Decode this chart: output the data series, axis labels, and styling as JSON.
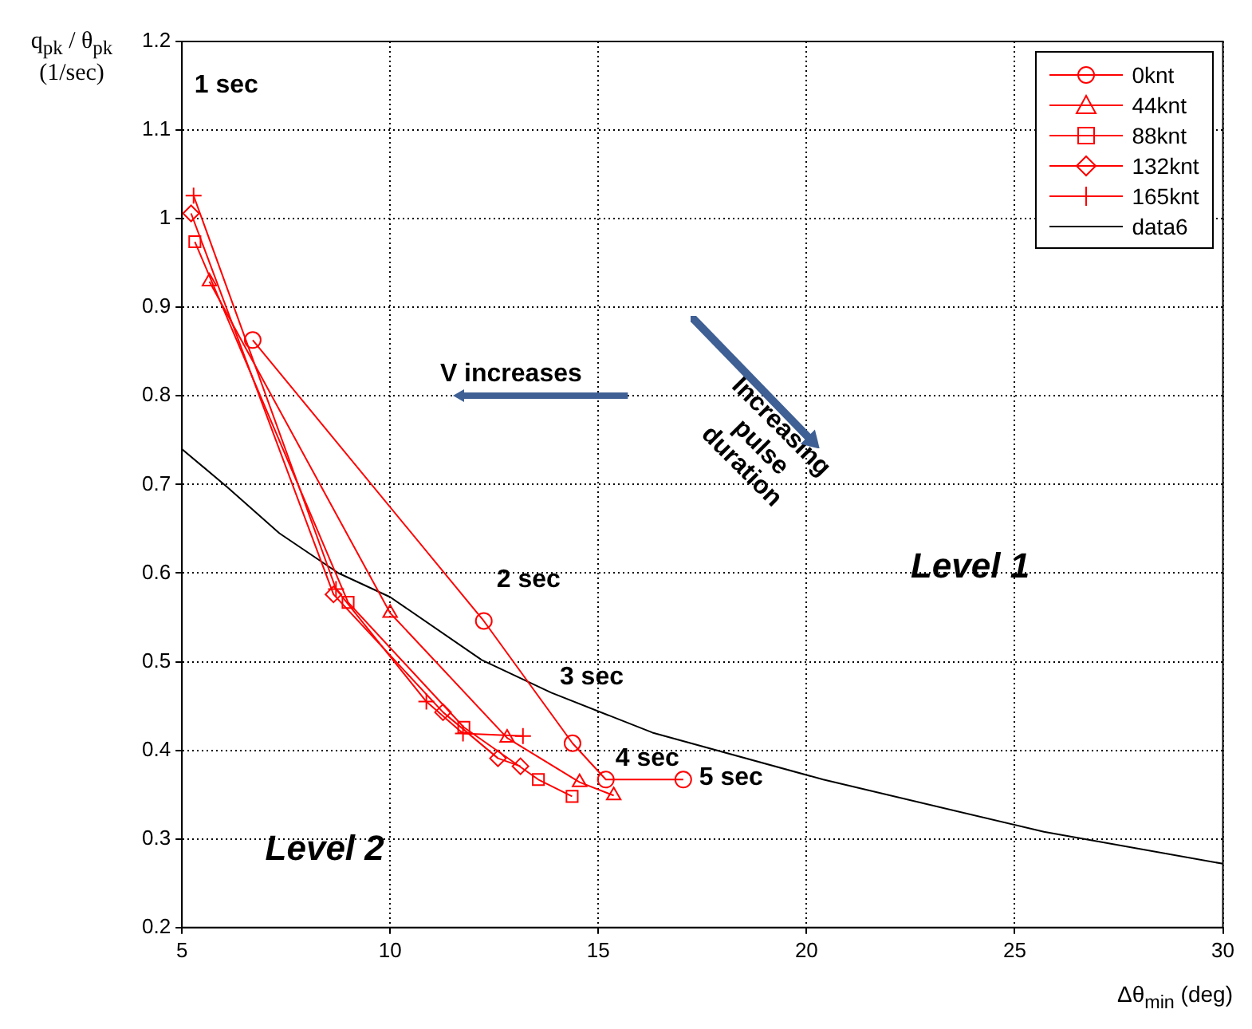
{
  "chart_data": {
    "type": "line",
    "ylabel": "q$_{pk}$ / θ$_{pk}$ (1/sec)",
    "xlabel": "Δθ$_{min}$ (deg)",
    "xlim": [
      5,
      30
    ],
    "xticks": [
      5,
      10,
      15,
      20,
      25,
      30
    ],
    "ylim": [
      0.2,
      1.2
    ],
    "yticks": [
      0.2,
      0.3,
      0.4,
      0.5,
      0.6,
      0.7,
      0.8,
      0.9,
      1,
      1.1,
      1.2
    ],
    "grid": true,
    "legend": "top right",
    "line_style": "solid",
    "series": [
      {
        "name": "0knt",
        "color": "#ff0000",
        "marker": "circle",
        "x": [
          6.7,
          12.25,
          14.38,
          15.18,
          17.04
        ],
        "values": [
          0.863,
          0.546,
          0.408,
          0.367,
          0.367
        ]
      },
      {
        "name": "44knt",
        "color": "#ff0000",
        "marker": "triangle",
        "x": [
          5.66,
          10.0,
          12.81,
          14.55,
          15.37
        ],
        "values": [
          0.929,
          0.555,
          0.414,
          0.364,
          0.349
        ]
      },
      {
        "name": "88knt",
        "color": "#ff0000",
        "marker": "square",
        "x": [
          5.31,
          8.99,
          11.77,
          13.56,
          14.37
        ],
        "values": [
          0.974,
          0.567,
          0.426,
          0.367,
          0.348
        ]
      },
      {
        "name": "132knt",
        "color": "#ff0000",
        "marker": "diamond",
        "x": [
          5.22,
          8.64,
          11.27,
          12.59,
          13.13
        ],
        "values": [
          1.006,
          0.576,
          0.443,
          0.391,
          0.382
        ]
      },
      {
        "name": "165knt",
        "color": "#ff0000",
        "marker": "cross",
        "x": [
          5.28,
          8.7,
          10.87,
          11.75,
          13.19
        ],
        "values": [
          1.026,
          0.582,
          0.455,
          0.419,
          0.416
        ]
      },
      {
        "name": "data6",
        "color": "#000000",
        "marker": "none",
        "x": [
          5,
          6.09,
          7.34,
          8.76,
          10,
          12.2,
          13.87,
          16.3,
          20.4,
          25.7,
          30
        ],
        "values": [
          0.74,
          0.697,
          0.645,
          0.6,
          0.573,
          0.502,
          0.465,
          0.42,
          0.367,
          0.308,
          0.272
        ]
      }
    ],
    "annotations": [
      "1 sec",
      "V increases",
      "Increasing pulse duration",
      "Level 1",
      "Level 2",
      {
        "text": "2 sec",
        "x": 12.25,
        "y": 0.546
      },
      {
        "text": "3 sec",
        "x": 14.38,
        "y": 0.408
      },
      {
        "text": "4 sec",
        "x": 15.18,
        "y": 0.367
      },
      {
        "text": "5 sec",
        "x": 17.04,
        "y": 0.367
      }
    ]
  }
}
